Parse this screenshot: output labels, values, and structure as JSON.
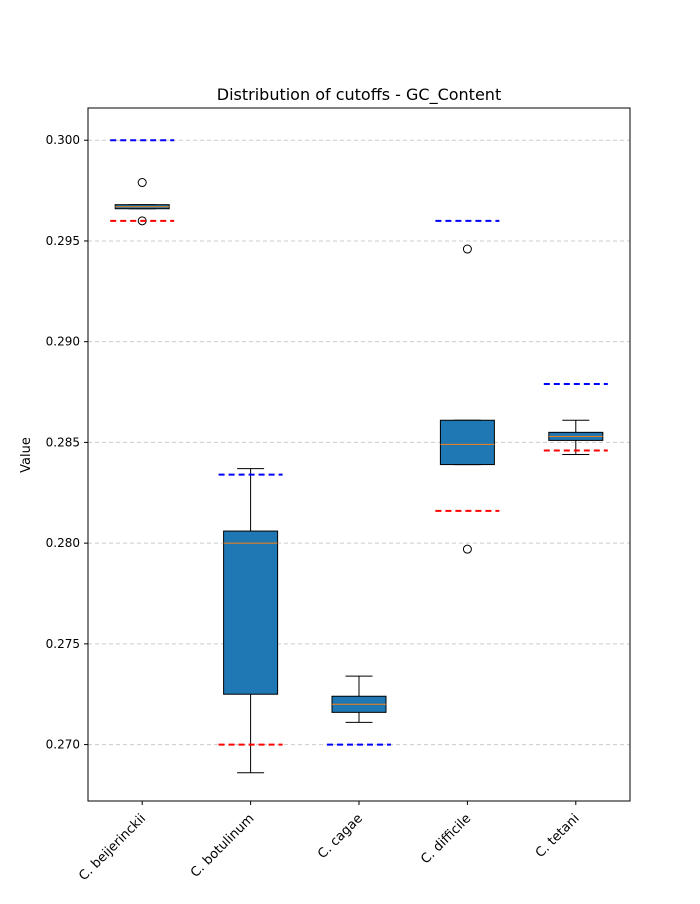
{
  "chart_data": {
    "type": "box",
    "title": "Distribution of cutoffs - GC_Content",
    "xlabel": "",
    "ylabel": "Value",
    "ylim": [
      0.2672,
      0.3016
    ],
    "yticks": [
      "0.270",
      "0.275",
      "0.280",
      "0.285",
      "0.290",
      "0.295",
      "0.300"
    ],
    "grid": "horizontal dashed",
    "colors": {
      "box_fill": "#1f77b4",
      "median": "#ff7f0e",
      "upper_cutoff": "#0000ff",
      "lower_cutoff": "#ff0000",
      "grid": "#cccccc"
    },
    "categories": [
      "C. beijerinckii",
      "C. botulinum",
      "C. cagae",
      "C. difficile",
      "C. tetani"
    ],
    "boxes": [
      {
        "whisker_low": 0.2966,
        "q1": 0.2966,
        "median": 0.2967,
        "q3": 0.2968,
        "whisker_high": 0.2968,
        "outliers": [
          0.2979,
          0.296
        ]
      },
      {
        "whisker_low": 0.2686,
        "q1": 0.2725,
        "median": 0.28,
        "q3": 0.2806,
        "whisker_high": 0.2837,
        "outliers": []
      },
      {
        "whisker_low": 0.2711,
        "q1": 0.2716,
        "median": 0.272,
        "q3": 0.2724,
        "whisker_high": 0.2734,
        "outliers": []
      },
      {
        "whisker_low": 0.2839,
        "q1": 0.2839,
        "median": 0.2849,
        "q3": 0.2861,
        "whisker_high": 0.2861,
        "outliers": [
          0.2946,
          0.2797
        ]
      },
      {
        "whisker_low": 0.2844,
        "q1": 0.2851,
        "median": 0.2853,
        "q3": 0.2855,
        "whisker_high": 0.2861,
        "outliers": []
      }
    ],
    "upper_cutoffs": [
      0.3,
      0.2834,
      0.27,
      0.296,
      0.2879
    ],
    "lower_cutoffs": [
      0.296,
      0.27,
      null,
      0.2816,
      0.2846
    ]
  }
}
